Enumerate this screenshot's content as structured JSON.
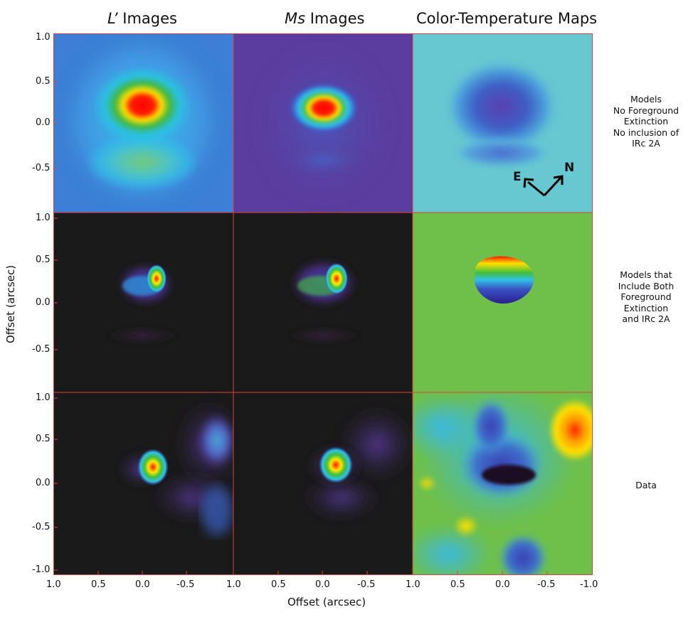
{
  "figure": {
    "column_titles": {
      "l_italic": "L’",
      "l_rest": " Images",
      "ms_italic": "Ms",
      "ms_rest": " Images",
      "color": "Color-Temperature Maps"
    },
    "row_labels": [
      "Models\nNo Foreground\nExtinction\nNo inclusion of\nIRc 2A",
      "Models that\nInclude Both\nForeground\nExtinction\nand IRc 2A",
      "Data"
    ],
    "y_ticks_row1": [
      "1.0",
      "0.5",
      "0.0",
      "-0.5"
    ],
    "y_ticks_row2": [
      "1.0",
      "0.5",
      "0.0",
      "-0.5"
    ],
    "y_ticks_row3": [
      "1.0",
      "0.5",
      "0.0",
      "-0.5",
      "-1.0"
    ],
    "x_ticks_panel1": [
      "1.0",
      "0.5",
      "0.0",
      "-0.5"
    ],
    "x_ticks_panel2": [
      "1.0",
      "0.5",
      "0.0",
      "-0.5"
    ],
    "x_ticks_panel3": [
      "1.0",
      "0.5",
      "0.0",
      "-0.5",
      "-1.0"
    ],
    "ylabel": "Offset (arcsec)",
    "xlabel": "Offset (arcsec)",
    "compass": {
      "east": "E",
      "north": "N"
    },
    "frame_color": "#e0403c"
  }
}
